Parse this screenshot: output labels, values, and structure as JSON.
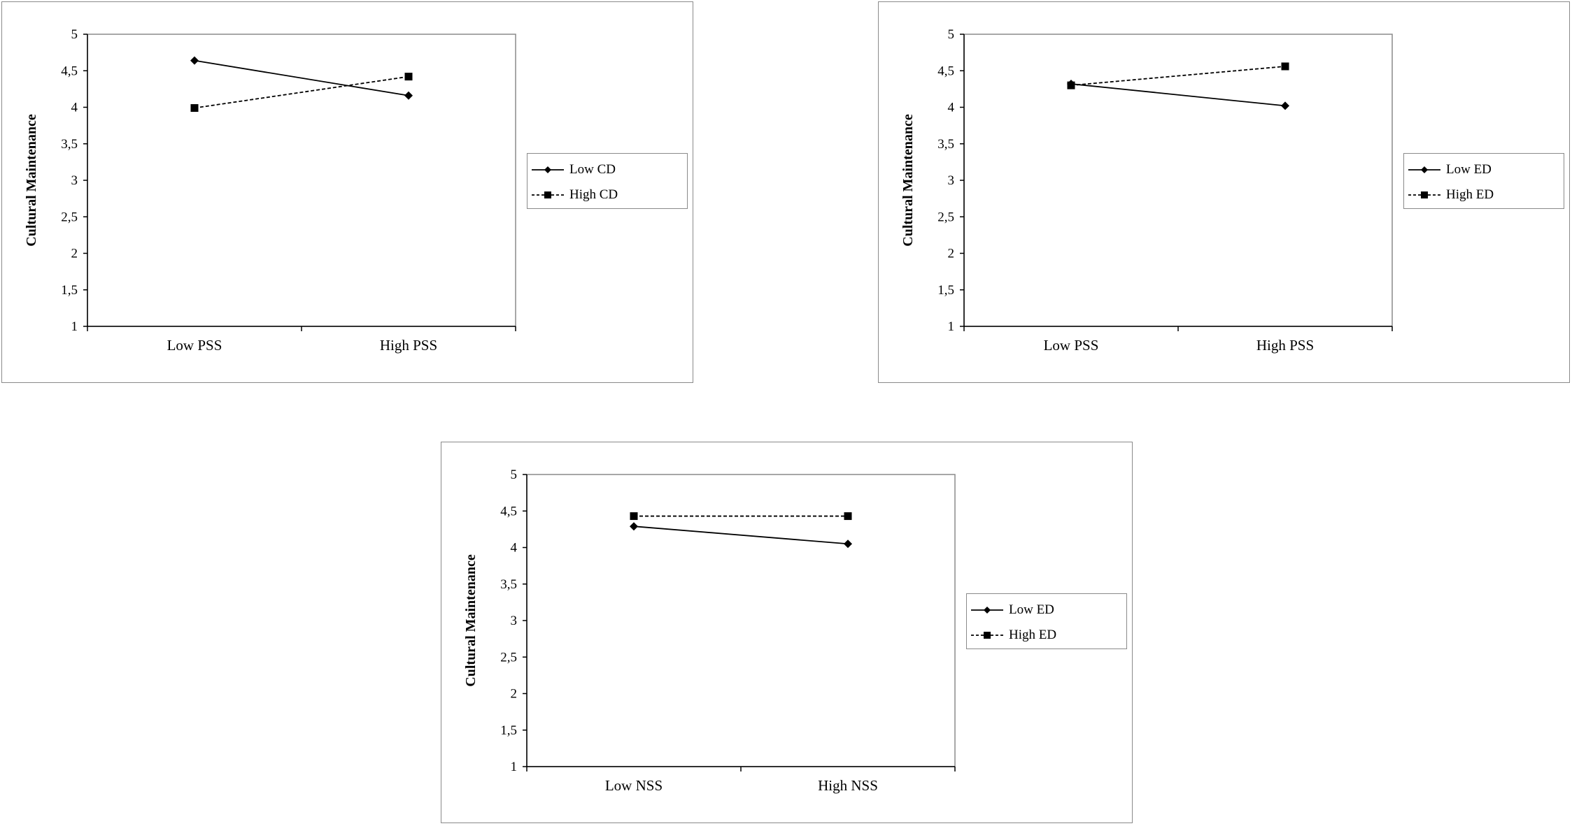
{
  "chart_data": [
    {
      "type": "line",
      "title": "",
      "xlabel": "",
      "ylabel": "Cultural Maintenance",
      "categories": [
        "Low PSS",
        "High PSS"
      ],
      "ylim": [
        1,
        5
      ],
      "yticks": [
        "1",
        "1,5",
        "2",
        "2,5",
        "3",
        "3,5",
        "4",
        "4,5",
        "5"
      ],
      "grid": false,
      "legend_position": "right",
      "series": [
        {
          "name": "Low CD",
          "values": [
            4.64,
            4.16
          ],
          "style": "solid",
          "marker": "diamond"
        },
        {
          "name": "High CD",
          "values": [
            3.99,
            4.42
          ],
          "style": "dashed",
          "marker": "square"
        }
      ]
    },
    {
      "type": "line",
      "title": "",
      "xlabel": "",
      "ylabel": "Cultural Maintenance",
      "categories": [
        "Low PSS",
        "High PSS"
      ],
      "ylim": [
        1,
        5
      ],
      "yticks": [
        "1",
        "1,5",
        "2",
        "2,5",
        "3",
        "3,5",
        "4",
        "4,5",
        "5"
      ],
      "grid": false,
      "legend_position": "right",
      "series": [
        {
          "name": "Low ED",
          "values": [
            4.32,
            4.02
          ],
          "style": "solid",
          "marker": "diamond"
        },
        {
          "name": "High ED",
          "values": [
            4.3,
            4.56
          ],
          "style": "dashed",
          "marker": "square"
        }
      ]
    },
    {
      "type": "line",
      "title": "",
      "xlabel": "",
      "ylabel": "Cultural Maintenance",
      "categories": [
        "Low NSS",
        "High NSS"
      ],
      "ylim": [
        1,
        5
      ],
      "yticks": [
        "1",
        "1,5",
        "2",
        "2,5",
        "3",
        "3,5",
        "4",
        "4,5",
        "5"
      ],
      "grid": false,
      "legend_position": "right",
      "series": [
        {
          "name": "Low ED",
          "values": [
            4.29,
            4.05
          ],
          "style": "solid",
          "marker": "diamond"
        },
        {
          "name": "High ED",
          "values": [
            4.43,
            4.43
          ],
          "style": "dashed",
          "marker": "square"
        }
      ]
    }
  ]
}
